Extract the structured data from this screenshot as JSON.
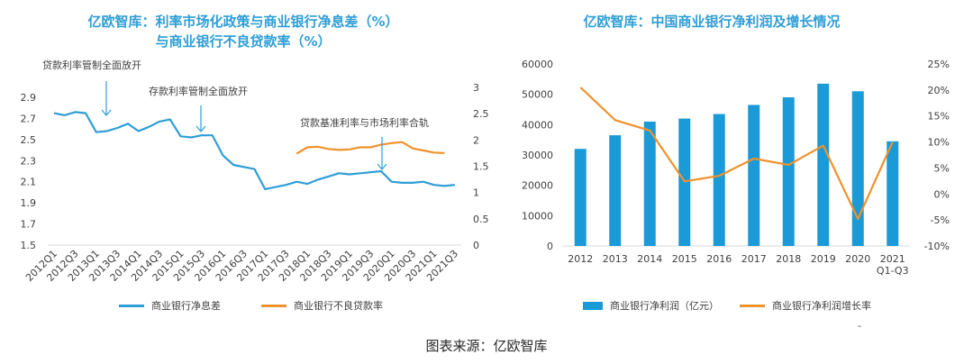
{
  "chart_data": [
    {
      "type": "line",
      "title": "亿欧智库：利率市场化政策与商业银行净息差（%）\n与商业银行不良贷款率（%）",
      "title_lines": [
        "亿欧智库：利率市场化政策与商业银行净息差（%）",
        "与商业银行不良贷款率（%）"
      ],
      "x_labels": [
        "2012Q1",
        "2012Q3",
        "2013Q1",
        "2013Q3",
        "2014Q1",
        "2014Q3",
        "2015Q1",
        "2015Q3",
        "2016Q1",
        "2016Q3",
        "2017Q1",
        "2017Q3",
        "2018Q1",
        "2018Q3",
        "2019Q1",
        "2019Q3",
        "2020Q1",
        "2020Q3",
        "2021Q1",
        "2021Q3"
      ],
      "left_axis": {
        "range": [
          1.5,
          2.9
        ],
        "ticks": [
          "1.5",
          "1.7",
          "1.9",
          "2.1",
          "2.3",
          "2.5",
          "2.7",
          "2.9"
        ]
      },
      "right_axis": {
        "range": [
          0,
          3
        ],
        "ticks": [
          "0",
          "0.5",
          "1",
          "1.5",
          "2",
          "2.5",
          "3"
        ]
      },
      "series": [
        {
          "name": "商业银行净息差",
          "axis": "left",
          "color": "#2f9ed6",
          "values": [
            2.75,
            2.73,
            2.76,
            2.75,
            2.57,
            2.58,
            2.61,
            2.65,
            2.58,
            2.62,
            2.67,
            2.69,
            2.53,
            2.52,
            2.54,
            2.54,
            2.35,
            2.26,
            2.24,
            2.22,
            2.03,
            2.05,
            2.07,
            2.1,
            2.08,
            2.12,
            2.15,
            2.18,
            2.17,
            2.18,
            2.19,
            2.2,
            2.1,
            2.09,
            2.09,
            2.1,
            2.07,
            2.06,
            2.07
          ]
        },
        {
          "name": "商业银行不良贷款率",
          "axis": "right",
          "color": "#f0922b",
          "start_index": 23,
          "values": [
            1.74,
            1.86,
            1.87,
            1.83,
            1.81,
            1.82,
            1.86,
            1.86,
            1.91,
            1.94,
            1.96,
            1.84,
            1.8,
            1.76,
            1.75
          ]
        }
      ],
      "annotations": [
        {
          "text": "贷款利率管制全面放开",
          "index": 5
        },
        {
          "text": "存款利率管制全面放开",
          "index": 13
        },
        {
          "text": "贷款基准利率与市场利率合轨",
          "index": 30
        }
      ],
      "legend": [
        "商业银行净息差",
        "商业银行不良贷款率"
      ]
    },
    {
      "type": "bar+line",
      "title": "亿欧智库：中国商业银行净利润及增长情况",
      "categories": [
        "2012",
        "2013",
        "2014",
        "2015",
        "2016",
        "2017",
        "2018",
        "2019",
        "2020",
        "2021 Q1-Q3"
      ],
      "category_lines": [
        [
          "2012"
        ],
        [
          "2013"
        ],
        [
          "2014"
        ],
        [
          "2015"
        ],
        [
          "2016"
        ],
        [
          "2017"
        ],
        [
          "2018"
        ],
        [
          "2019"
        ],
        [
          "2020"
        ],
        [
          "2021",
          "Q1-Q3"
        ]
      ],
      "left_axis": {
        "range": [
          0,
          60000
        ],
        "ticks": [
          "0",
          "10000",
          "20000",
          "30000",
          "40000",
          "50000",
          "60000"
        ]
      },
      "right_axis": {
        "range": [
          -10,
          25
        ],
        "ticks": [
          "-10%",
          "-5%",
          "0%",
          "5%",
          "10%",
          "15%",
          "20%",
          "25%"
        ]
      },
      "series": [
        {
          "name": "商业银行净利润（亿元）",
          "type": "bar",
          "axis": "left",
          "color": "#1a9ad6",
          "values": [
            32000,
            36500,
            41000,
            42000,
            43500,
            46500,
            49000,
            53500,
            51000,
            34500
          ]
        },
        {
          "name": "商业银行净利润增长率",
          "type": "line",
          "axis": "right",
          "color": "#f0922b",
          "values": [
            20.5,
            14.2,
            12.2,
            2.4,
            3.5,
            6.8,
            5.6,
            9.3,
            -4.8,
            10
          ]
        }
      ],
      "legend": [
        "商业银行净利润（亿元）",
        "商业银行净利润增长率"
      ]
    }
  ],
  "colors": {
    "title": "#2f9ed6",
    "axis_text": "#404040"
  },
  "footer": {
    "source": "图表来源：亿欧智库",
    "dash": "-"
  }
}
